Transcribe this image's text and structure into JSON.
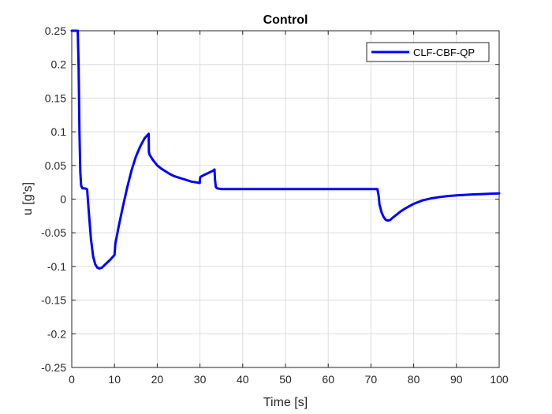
{
  "chart_data": {
    "type": "line",
    "title": "Control",
    "xlabel": "Time [s]",
    "ylabel": "u [g's]",
    "xlim": [
      0,
      100
    ],
    "ylim": [
      -0.25,
      0.25
    ],
    "xticks": [
      0,
      10,
      20,
      30,
      40,
      50,
      60,
      70,
      80,
      90,
      100
    ],
    "yticks": [
      0.25,
      0.2,
      0.15,
      0.1,
      0.05,
      0,
      -0.05,
      -0.1,
      -0.15,
      -0.2,
      -0.25
    ],
    "xtick_labels": [
      "0",
      "10",
      "20",
      "30",
      "40",
      "50",
      "60",
      "70",
      "80",
      "90",
      "100"
    ],
    "ytick_labels": [
      "0.25",
      "0.2",
      "0.15",
      "0.1",
      "0.05",
      "0",
      "-0.05",
      "-0.1",
      "-0.15",
      "-0.2",
      "-0.25"
    ],
    "grid": true,
    "legend_position": "top-right",
    "series": [
      {
        "name": "CLF-CBF-QP",
        "color": "#0000ff",
        "x": [
          0,
          1.4,
          1.6,
          1.8,
          2.0,
          2.2,
          2.5,
          3.0,
          3.5,
          3.6,
          4,
          4.5,
          5,
          5.5,
          6,
          6.5,
          7,
          7.5,
          8,
          9,
          10,
          10.1,
          10.2,
          11,
          12,
          13,
          14,
          15,
          16,
          17,
          18,
          18.05,
          18.2,
          19,
          20,
          21,
          22,
          23,
          24,
          25,
          26,
          27,
          28,
          29,
          29.95,
          30.0,
          30.1,
          31,
          32,
          33,
          33.4,
          33.5,
          33.7,
          34,
          35,
          40,
          50,
          60,
          70,
          71.5,
          71.8,
          72,
          72.5,
          73,
          73.5,
          74,
          74.5,
          75,
          76,
          77,
          78,
          80,
          82,
          84,
          86,
          88,
          90,
          92,
          94,
          96,
          98,
          100
        ],
        "y": [
          0.25,
          0.25,
          0.2,
          0.1,
          0.04,
          0.02,
          0.016,
          0.016,
          0.015,
          0.014,
          -0.02,
          -0.06,
          -0.085,
          -0.097,
          -0.102,
          -0.103,
          -0.102,
          -0.099,
          -0.096,
          -0.09,
          -0.083,
          -0.075,
          -0.066,
          -0.04,
          -0.01,
          0.018,
          0.043,
          0.063,
          0.078,
          0.09,
          0.097,
          0.07,
          0.066,
          0.058,
          0.05,
          0.045,
          0.041,
          0.037,
          0.034,
          0.032,
          0.03,
          0.028,
          0.026,
          0.025,
          0.024,
          0.03,
          0.033,
          0.036,
          0.039,
          0.042,
          0.044,
          0.03,
          0.018,
          0.016,
          0.015,
          0.015,
          0.015,
          0.015,
          0.015,
          0.015,
          0.005,
          -0.008,
          -0.02,
          -0.027,
          -0.031,
          -0.032,
          -0.031,
          -0.028,
          -0.023,
          -0.018,
          -0.014,
          -0.007,
          -0.002,
          0.001,
          0.003,
          0.0045,
          0.0055,
          0.0063,
          0.007,
          0.0075,
          0.008,
          0.0085
        ]
      }
    ]
  }
}
